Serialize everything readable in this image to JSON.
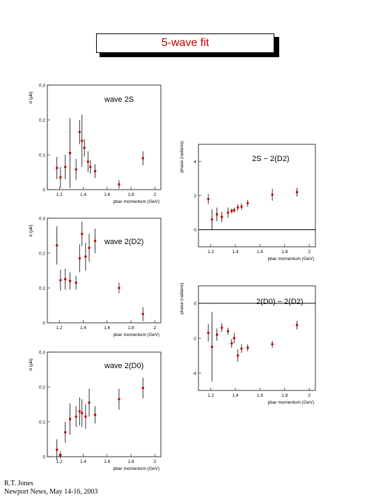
{
  "title": "5-wave fit",
  "footer": {
    "line1": "R.T. Jones",
    "line2": "Newport News, May 14-16, 2003"
  },
  "colors": {
    "marker": "#cc0000",
    "errorbar": "#000000"
  },
  "chart_data": [
    {
      "type": "scatter",
      "label": "wave 2S",
      "xlabel": "pbar momentum (GeV)",
      "ylabel": "σ (μb)",
      "xlim": [
        1.1,
        2.05
      ],
      "ylim": [
        0,
        0.3
      ],
      "xticks": [
        1.2,
        1.4,
        1.6,
        1.8,
        2
      ],
      "yticks": [
        0,
        0.1,
        0.2,
        0.3
      ],
      "points": [
        {
          "x": 1.18,
          "y": 0.062,
          "err": 0.032
        },
        {
          "x": 1.21,
          "y": 0.035,
          "err": 0.03
        },
        {
          "x": 1.25,
          "y": 0.065,
          "err": 0.035
        },
        {
          "x": 1.29,
          "y": 0.105,
          "err": 0.1
        },
        {
          "x": 1.34,
          "y": 0.058,
          "err": 0.03
        },
        {
          "x": 1.37,
          "y": 0.165,
          "err": 0.035
        },
        {
          "x": 1.39,
          "y": 0.14,
          "err": 0.075
        },
        {
          "x": 1.41,
          "y": 0.12,
          "err": 0.025
        },
        {
          "x": 1.44,
          "y": 0.08,
          "err": 0.03
        },
        {
          "x": 1.46,
          "y": 0.065,
          "err": 0.02
        },
        {
          "x": 1.5,
          "y": 0.053,
          "err": 0.02
        },
        {
          "x": 1.7,
          "y": 0.015,
          "err": 0.012
        },
        {
          "x": 1.9,
          "y": 0.09,
          "err": 0.02
        }
      ]
    },
    {
      "type": "scatter",
      "label": "wave 2(D2)",
      "xlabel": "pbar momentum (GeV)",
      "ylabel": "σ (μb)",
      "xlim": [
        1.1,
        2.05
      ],
      "ylim": [
        0,
        0.3
      ],
      "xticks": [
        1.2,
        1.4,
        1.6,
        1.8,
        2
      ],
      "yticks": [
        0,
        0.1,
        0.2,
        0.3
      ],
      "points": [
        {
          "x": 1.18,
          "y": 0.222,
          "err": 0.055
        },
        {
          "x": 1.21,
          "y": 0.122,
          "err": 0.03
        },
        {
          "x": 1.25,
          "y": 0.125,
          "err": 0.03
        },
        {
          "x": 1.29,
          "y": 0.12,
          "err": 0.025
        },
        {
          "x": 1.34,
          "y": 0.115,
          "err": 0.02
        },
        {
          "x": 1.37,
          "y": 0.185,
          "err": 0.04
        },
        {
          "x": 1.39,
          "y": 0.255,
          "err": 0.035
        },
        {
          "x": 1.42,
          "y": 0.19,
          "err": 0.04
        },
        {
          "x": 1.45,
          "y": 0.215,
          "err": 0.04
        },
        {
          "x": 1.5,
          "y": 0.235,
          "err": 0.035
        },
        {
          "x": 1.7,
          "y": 0.1,
          "err": 0.015
        },
        {
          "x": 1.9,
          "y": 0.025,
          "err": 0.02
        }
      ]
    },
    {
      "type": "scatter",
      "label": "wave 2(D0)",
      "xlabel": "pbar momentum (GeV)",
      "ylabel": "σ (μb)",
      "xlim": [
        1.1,
        2.05
      ],
      "ylim": [
        0,
        0.3
      ],
      "xticks": [
        1.2,
        1.4,
        1.6,
        1.8,
        2
      ],
      "yticks": [
        0,
        0.1,
        0.2,
        0.3
      ],
      "points": [
        {
          "x": 1.18,
          "y": 0.02,
          "err": 0.03
        },
        {
          "x": 1.21,
          "y": 0.005,
          "err": 0.01
        },
        {
          "x": 1.25,
          "y": 0.07,
          "err": 0.03
        },
        {
          "x": 1.29,
          "y": 0.108,
          "err": 0.045
        },
        {
          "x": 1.34,
          "y": 0.115,
          "err": 0.03
        },
        {
          "x": 1.37,
          "y": 0.13,
          "err": 0.04
        },
        {
          "x": 1.39,
          "y": 0.125,
          "err": 0.04
        },
        {
          "x": 1.42,
          "y": 0.115,
          "err": 0.035
        },
        {
          "x": 1.45,
          "y": 0.155,
          "err": 0.04
        },
        {
          "x": 1.5,
          "y": 0.12,
          "err": 0.025
        },
        {
          "x": 1.7,
          "y": 0.165,
          "err": 0.03
        },
        {
          "x": 1.9,
          "y": 0.197,
          "err": 0.03
        }
      ]
    },
    {
      "type": "scatter",
      "label": "2S − 2(D2)",
      "xlabel": "pbar momentum (GeV)",
      "ylabel": "phase (radians)",
      "xlim": [
        1.1,
        2.05
      ],
      "ylim": [
        -1,
        5
      ],
      "xticks": [
        1.2,
        1.4,
        1.6,
        1.8,
        2
      ],
      "yticks": [
        0,
        2,
        4
      ],
      "zero_line": true,
      "points": [
        {
          "x": 1.18,
          "y": 1.8,
          "err": 0.3
        },
        {
          "x": 1.21,
          "y": 0.6,
          "err": 0.6
        },
        {
          "x": 1.25,
          "y": 0.9,
          "err": 0.4
        },
        {
          "x": 1.29,
          "y": 0.75,
          "err": 0.3
        },
        {
          "x": 1.34,
          "y": 1.0,
          "err": 0.3
        },
        {
          "x": 1.37,
          "y": 1.1,
          "err": 0.15
        },
        {
          "x": 1.39,
          "y": 1.15,
          "err": 0.15
        },
        {
          "x": 1.42,
          "y": 1.3,
          "err": 0.2
        },
        {
          "x": 1.45,
          "y": 1.35,
          "err": 0.2
        },
        {
          "x": 1.5,
          "y": 1.55,
          "err": 0.2
        },
        {
          "x": 1.7,
          "y": 2.05,
          "err": 0.35
        },
        {
          "x": 1.9,
          "y": 2.2,
          "err": 0.25
        }
      ]
    },
    {
      "type": "scatter",
      "label": "2(D0) − 2(D2)",
      "xlabel": "pbar momentum (GeV)",
      "ylabel": "phase (radians)",
      "xlim": [
        1.1,
        2.05
      ],
      "ylim": [
        -5,
        1
      ],
      "xticks": [
        1.2,
        1.4,
        1.6,
        1.8,
        2
      ],
      "yticks": [
        -4,
        -2,
        0
      ],
      "zero_line": true,
      "points": [
        {
          "x": 1.18,
          "y": -1.7,
          "err": 0.5
        },
        {
          "x": 1.21,
          "y": -2.5,
          "err": 2.0
        },
        {
          "x": 1.25,
          "y": -1.8,
          "err": 0.35
        },
        {
          "x": 1.29,
          "y": -1.4,
          "err": 0.25
        },
        {
          "x": 1.34,
          "y": -1.6,
          "err": 0.2
        },
        {
          "x": 1.37,
          "y": -2.3,
          "err": 0.25
        },
        {
          "x": 1.39,
          "y": -2.0,
          "err": 0.3
        },
        {
          "x": 1.42,
          "y": -3.0,
          "err": 0.35
        },
        {
          "x": 1.45,
          "y": -2.6,
          "err": 0.25
        },
        {
          "x": 1.5,
          "y": -2.55,
          "err": 0.2
        },
        {
          "x": 1.7,
          "y": -2.35,
          "err": 0.2
        },
        {
          "x": 1.9,
          "y": -1.25,
          "err": 0.25
        }
      ]
    }
  ]
}
